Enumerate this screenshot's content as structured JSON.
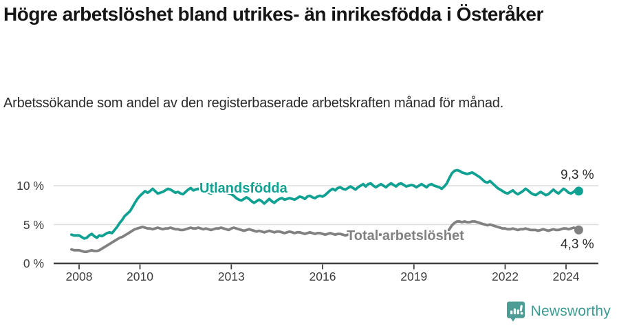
{
  "header": {
    "title": "Högre arbetslöshet bland utrikes- än inrikesfödda i Österåker",
    "subtitle": "Arbetssökande som andel av den registerbaserade arbetskraften månad för månad."
  },
  "chart_data": {
    "type": "line",
    "x_start": 2007.75,
    "x_step_years": 0.08333,
    "xlim": [
      2007.5,
      2025.3
    ],
    "ylim": [
      0,
      12.5
    ],
    "grid": "horizontal",
    "x_ticks": [
      "2008",
      "2010",
      "2013",
      "2016",
      "2019",
      "2022",
      "2024"
    ],
    "x_tick_years": [
      2008,
      2010,
      2013,
      2016,
      2019,
      2022,
      2024
    ],
    "y_ticks": [
      "10 %",
      "5 %",
      "0 %"
    ],
    "y_tick_values": [
      10,
      5,
      0
    ],
    "axis_color": "#3f3f3f",
    "grid_color": "#dcdcdc",
    "series": [
      {
        "name": "Utlandsfödda",
        "color": "#10A192",
        "end_label": "9,3 %",
        "end_value": 9.3,
        "values": [
          3.7,
          3.6,
          3.6,
          3.6,
          3.4,
          3.2,
          3.3,
          3.6,
          3.8,
          3.5,
          3.3,
          3.6,
          3.5,
          3.7,
          3.9,
          4.0,
          3.9,
          4.3,
          4.7,
          5.2,
          5.6,
          6.1,
          6.4,
          6.7,
          7.2,
          7.8,
          8.3,
          8.7,
          9.0,
          9.3,
          9.1,
          9.3,
          9.6,
          9.3,
          9.0,
          9.1,
          9.2,
          9.4,
          9.6,
          9.5,
          9.3,
          9.1,
          9.2,
          9.0,
          8.9,
          9.2,
          9.5,
          9.7,
          9.4,
          9.5,
          9.6,
          9.4,
          9.2,
          9.3,
          9.1,
          9.0,
          9.2,
          9.4,
          9.3,
          9.5,
          9.3,
          9.2,
          9.0,
          8.9,
          8.7,
          8.4,
          8.2,
          8.1,
          8.3,
          8.5,
          8.3,
          8.0,
          7.8,
          8.0,
          8.2,
          8.0,
          7.7,
          8.0,
          8.3,
          8.0,
          7.8,
          8.1,
          8.3,
          8.4,
          8.2,
          8.3,
          8.4,
          8.3,
          8.2,
          8.4,
          8.6,
          8.5,
          8.3,
          8.6,
          8.7,
          8.5,
          8.4,
          8.6,
          8.7,
          8.6,
          8.8,
          9.1,
          9.4,
          9.6,
          9.4,
          9.7,
          9.8,
          9.6,
          9.5,
          9.7,
          9.9,
          9.7,
          9.5,
          9.8,
          10.0,
          10.2,
          9.9,
          10.2,
          10.3,
          10.0,
          9.8,
          10.0,
          10.2,
          10.0,
          9.8,
          10.1,
          10.3,
          10.1,
          9.9,
          10.2,
          10.3,
          10.1,
          9.9,
          10.0,
          10.1,
          10.0,
          9.8,
          10.0,
          10.2,
          10.0,
          9.8,
          10.1,
          10.2,
          10.0,
          9.9,
          9.8,
          9.6,
          9.9,
          10.3,
          11.0,
          11.6,
          11.9,
          12.0,
          11.9,
          11.7,
          11.6,
          11.5,
          11.6,
          11.7,
          11.5,
          11.3,
          11.1,
          10.8,
          10.5,
          10.4,
          10.6,
          10.3,
          10.0,
          9.7,
          9.5,
          9.3,
          9.1,
          9.0,
          9.2,
          9.4,
          9.1,
          8.9,
          9.1,
          9.3,
          9.6,
          9.4,
          9.1,
          8.9,
          8.8,
          9.0,
          9.2,
          9.0,
          8.8,
          8.9,
          9.2,
          9.5,
          9.2,
          9.0,
          9.3,
          9.6,
          9.4,
          9.1,
          9.0,
          9.2,
          9.5,
          9.3
        ]
      },
      {
        "name": "Total arbetslöshet",
        "color": "#818181",
        "end_label": "4,3 %",
        "end_value": 4.3,
        "values": [
          1.8,
          1.7,
          1.7,
          1.7,
          1.6,
          1.5,
          1.5,
          1.6,
          1.7,
          1.6,
          1.6,
          1.7,
          1.9,
          2.1,
          2.3,
          2.5,
          2.7,
          2.9,
          3.1,
          3.3,
          3.4,
          3.6,
          3.8,
          4.0,
          4.2,
          4.4,
          4.5,
          4.6,
          4.7,
          4.6,
          4.5,
          4.5,
          4.4,
          4.5,
          4.6,
          4.5,
          4.4,
          4.5,
          4.5,
          4.6,
          4.5,
          4.4,
          4.4,
          4.3,
          4.3,
          4.4,
          4.5,
          4.6,
          4.5,
          4.5,
          4.6,
          4.5,
          4.4,
          4.5,
          4.4,
          4.3,
          4.4,
          4.5,
          4.5,
          4.6,
          4.5,
          4.4,
          4.3,
          4.5,
          4.6,
          4.5,
          4.4,
          4.3,
          4.2,
          4.3,
          4.4,
          4.3,
          4.2,
          4.1,
          4.2,
          4.1,
          4.0,
          4.1,
          4.2,
          4.1,
          4.0,
          4.1,
          4.1,
          4.0,
          3.9,
          4.0,
          4.1,
          4.0,
          3.9,
          4.0,
          4.0,
          3.9,
          3.8,
          3.9,
          4.0,
          3.9,
          3.8,
          3.9,
          3.9,
          3.8,
          3.7,
          3.8,
          3.9,
          3.8,
          3.7,
          3.8,
          3.8,
          3.7,
          3.6,
          3.7,
          3.7,
          3.6,
          3.6,
          3.7,
          3.7,
          3.6,
          3.5,
          3.6,
          3.7,
          3.6,
          3.6,
          3.7,
          3.7,
          3.6,
          3.5,
          3.6,
          3.7,
          3.6,
          3.5,
          3.6,
          3.6,
          3.5,
          3.5,
          3.6,
          3.6,
          3.6,
          3.5,
          3.6,
          3.7,
          3.6,
          3.6,
          3.7,
          3.8,
          3.7,
          3.7,
          3.8,
          3.8,
          3.9,
          4.0,
          4.4,
          4.9,
          5.2,
          5.4,
          5.4,
          5.3,
          5.4,
          5.3,
          5.3,
          5.4,
          5.4,
          5.3,
          5.2,
          5.1,
          5.0,
          4.9,
          5.0,
          4.9,
          4.8,
          4.7,
          4.6,
          4.5,
          4.5,
          4.4,
          4.4,
          4.5,
          4.4,
          4.3,
          4.4,
          4.4,
          4.5,
          4.4,
          4.3,
          4.3,
          4.3,
          4.2,
          4.3,
          4.4,
          4.3,
          4.2,
          4.3,
          4.4,
          4.3,
          4.3,
          4.4,
          4.5,
          4.5,
          4.4,
          4.5,
          4.6,
          4.5,
          4.3
        ]
      }
    ]
  },
  "footer": {
    "brand": "Newsworthy",
    "brand_color": "#3E9B94",
    "logo_icon": "newsworthy-speech-bubble-bar-chart-icon",
    "logo_color": "#4E9C96"
  }
}
